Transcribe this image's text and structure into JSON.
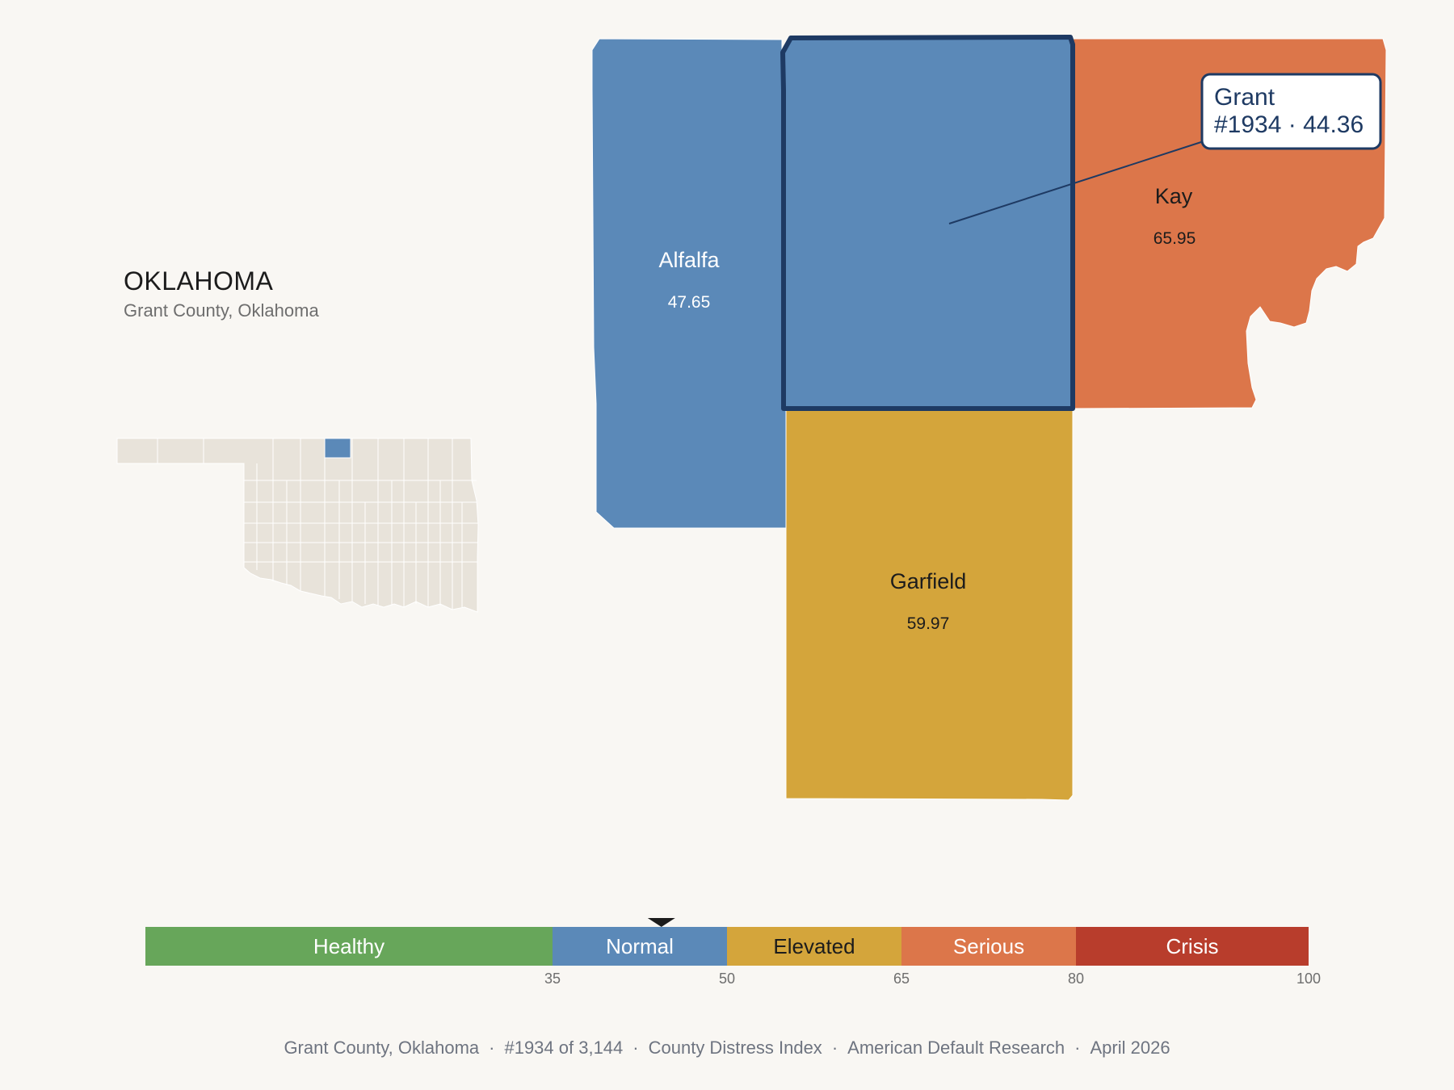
{
  "header": {
    "state": "OKLAHOMA",
    "subtitle": "Grant County, Oklahoma"
  },
  "colors": {
    "healthy": "#67a65a",
    "normal": "#5b89b8",
    "elevated": "#d4a53b",
    "serious": "#dc764a",
    "crisis": "#b83d2c",
    "outline": "#1e3a63",
    "state_fill": "#e8e3da"
  },
  "counties": [
    {
      "id": "alfalfa",
      "name": "Alfalfa",
      "value": "47.65",
      "band": "normal",
      "text_color": "#ffffff"
    },
    {
      "id": "grant",
      "name": "Grant",
      "value": "44.36",
      "band": "normal",
      "text_color": "#ffffff"
    },
    {
      "id": "kay",
      "name": "Kay",
      "value": "65.95",
      "band": "serious",
      "text_color": "#1c1c1c"
    },
    {
      "id": "garfield",
      "name": "Garfield",
      "value": "59.97",
      "band": "elevated",
      "text_color": "#1c1c1c"
    }
  ],
  "callout": {
    "line1": "Grant",
    "line2": "#1934 · 44.36"
  },
  "scale": {
    "min": 0,
    "max": 100,
    "marker_value": 44.36,
    "bands": [
      {
        "label": "Healthy",
        "from": 0,
        "to": 35,
        "color": "#67a65a",
        "text_color": "#ffffff"
      },
      {
        "label": "Normal",
        "from": 35,
        "to": 50,
        "color": "#5b89b8",
        "text_color": "#ffffff"
      },
      {
        "label": "Elevated",
        "from": 50,
        "to": 65,
        "color": "#d4a53b",
        "text_color": "#1c1c1c"
      },
      {
        "label": "Serious",
        "from": 65,
        "to": 80,
        "color": "#dc764a",
        "text_color": "#ffffff"
      },
      {
        "label": "Crisis",
        "from": 80,
        "to": 100,
        "color": "#b83d2c",
        "text_color": "#ffffff"
      }
    ],
    "ticks": [
      "35",
      "50",
      "65",
      "80",
      "100"
    ]
  },
  "footer": {
    "county": "Grant County, Oklahoma",
    "rank": "#1934 of 3,144",
    "index": "County Distress Index",
    "source": "American Default Research",
    "date": "April 2026"
  }
}
